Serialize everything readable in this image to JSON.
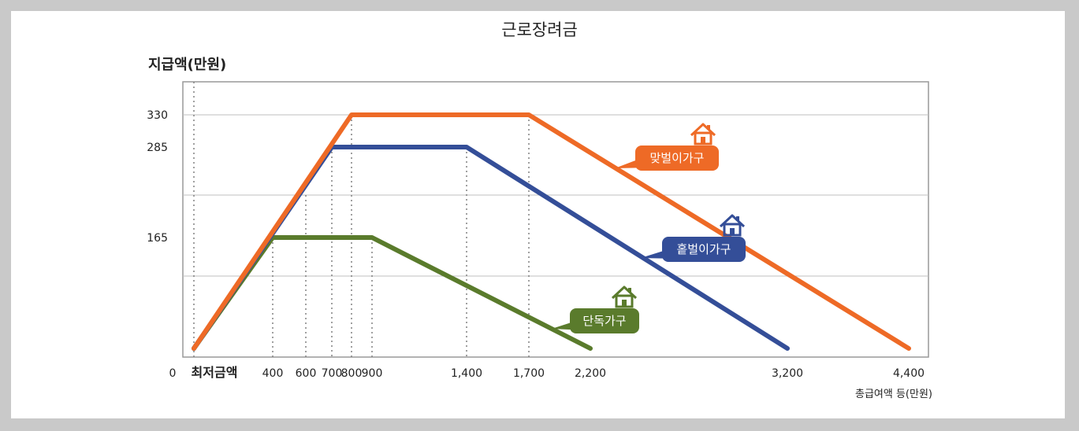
{
  "title": "근로장려금",
  "colors": {
    "couple": "#ee6a26",
    "single_earner": "#344e98",
    "single": "#5a7b2c",
    "grid": "#bfbfbf",
    "dotted": "#888888",
    "axis_border": "#999999"
  },
  "chart_data": {
    "type": "line",
    "title": "근로장려금",
    "ylabel": "지급액(만원)",
    "xlabel": "총급여액 등(만원)",
    "y_ticks": [
      {
        "value": 330,
        "label": "330"
      },
      {
        "value": 285,
        "label": "285"
      },
      {
        "value": 165,
        "label": "165"
      }
    ],
    "x_ticks": [
      {
        "value": 0,
        "label": "0"
      },
      {
        "value": 50,
        "label": "최저금액"
      },
      {
        "value": 400,
        "label": "400"
      },
      {
        "value": 600,
        "label": "600"
      },
      {
        "value": 700,
        "label": "700"
      },
      {
        "value": 800,
        "label": "800"
      },
      {
        "value": 900,
        "label": "900"
      },
      {
        "value": 1400,
        "label": "1,400"
      },
      {
        "value": 1700,
        "label": "1,700"
      },
      {
        "value": 2200,
        "label": "2,200"
      },
      {
        "value": 3200,
        "label": "3,200"
      },
      {
        "value": 4400,
        "label": "4,400"
      }
    ],
    "dotted_x": [
      50,
      400,
      600,
      700,
      800,
      900,
      1400,
      1700
    ],
    "series": [
      {
        "name": "맞벌이가구",
        "color": "#ee6a26",
        "points": [
          [
            50,
            0
          ],
          [
            800,
            330
          ],
          [
            1700,
            330
          ],
          [
            4400,
            0
          ]
        ]
      },
      {
        "name": "홑벌이가구",
        "color": "#344e98",
        "points": [
          [
            50,
            0
          ],
          [
            700,
            285
          ],
          [
            1400,
            285
          ],
          [
            3200,
            0
          ]
        ]
      },
      {
        "name": "단독가구",
        "color": "#5a7b2c",
        "points": [
          [
            50,
            0
          ],
          [
            400,
            165
          ],
          [
            900,
            165
          ],
          [
            2200,
            0
          ]
        ]
      }
    ],
    "grid": true
  }
}
